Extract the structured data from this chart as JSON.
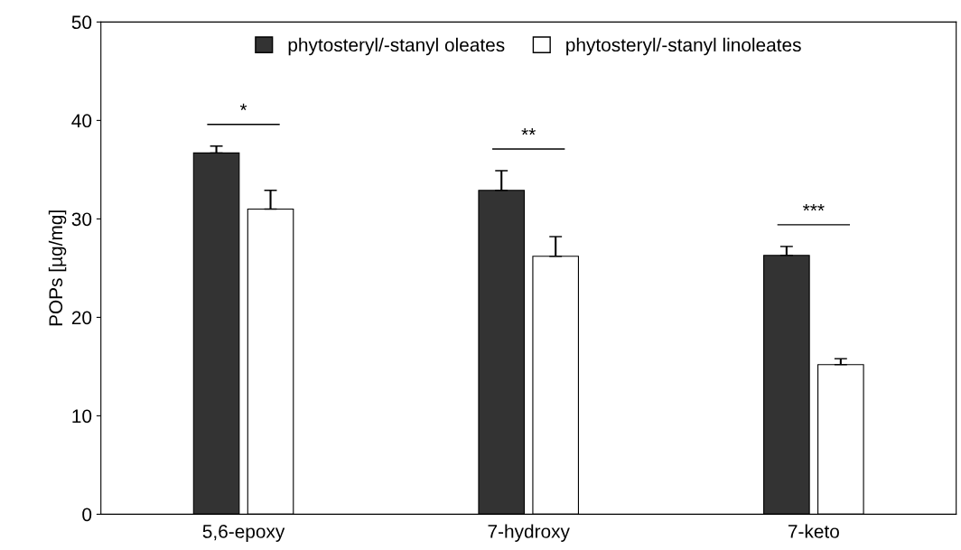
{
  "chart_data": {
    "type": "bar",
    "ylabel": "POPs [µg/mg]",
    "categories": [
      "5,6-epoxy",
      "7-hydroxy",
      "7-keto"
    ],
    "series": [
      {
        "name": "phytosteryl/-stanyl oleates",
        "color": "#333333",
        "values": [
          36.7,
          32.9,
          26.3
        ],
        "errors": [
          0.7,
          2.0,
          0.9
        ]
      },
      {
        "name": "phytosteryl/-stanyl linoleates",
        "color": "#ffffff",
        "values": [
          31.0,
          26.2,
          15.2
        ],
        "errors": [
          1.9,
          2.0,
          0.6
        ]
      }
    ],
    "annotations": [
      "*",
      "**",
      "***"
    ],
    "ylim": [
      0,
      50
    ],
    "yticks": [
      0,
      10,
      20,
      30,
      40,
      50
    ],
    "grid": false,
    "legend": "top"
  }
}
